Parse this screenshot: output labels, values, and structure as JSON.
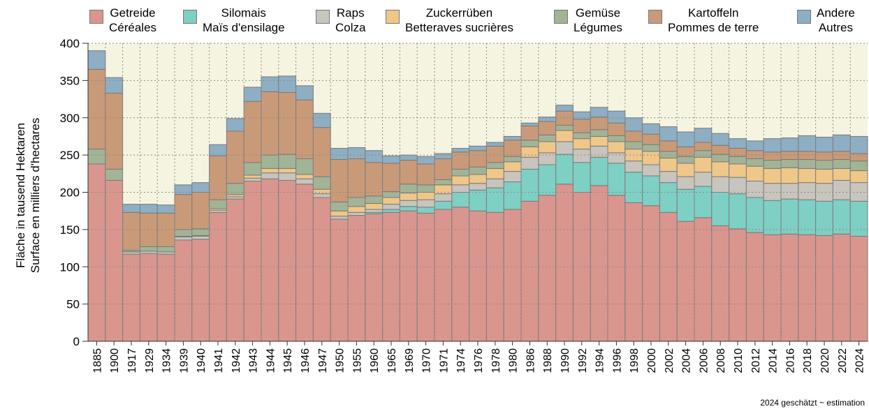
{
  "chart_data": {
    "type": "stacked_bar",
    "ylabel": [
      "Fläche in tausend Hektaren",
      "Surface en milliers d'hectares"
    ],
    "note": "2024 geschätzt  ~  estimation",
    "categories": [
      "1885",
      "1900",
      "1917",
      "1929",
      "1934",
      "1939",
      "1940",
      "1941",
      "1942",
      "1943",
      "1944",
      "1945",
      "1946",
      "1947",
      "1950",
      "1955",
      "1960",
      "1965",
      "1969",
      "1970",
      "1971",
      "1974",
      "1976",
      "1978",
      "1980",
      "1986",
      "1988",
      "1990",
      "1992",
      "1994",
      "1996",
      "1998",
      "2000",
      "2002",
      "2004",
      "2006",
      "2008",
      "2010",
      "2012",
      "2014",
      "2016",
      "2018",
      "2020",
      "2022",
      "2024"
    ],
    "ylim": [
      0,
      400
    ],
    "yticks": [
      0,
      50,
      100,
      150,
      200,
      250,
      300,
      350,
      400
    ],
    "grid": true,
    "background": "#f4f4e0",
    "series": [
      {
        "name": "Getreide\nCéréales",
        "color": "#d9968e",
        "values": [
          238,
          216,
          117,
          118,
          117,
          136,
          137,
          173,
          191,
          215,
          218,
          216,
          211,
          193,
          164,
          169,
          171,
          173,
          175,
          172,
          177,
          180,
          175,
          173,
          177,
          188,
          196,
          211,
          200,
          209,
          196,
          186,
          182,
          173,
          161,
          166,
          155,
          151,
          146,
          143,
          144,
          143,
          142,
          144,
          141
        ]
      },
      {
        "name": "Silomais\nMaïs d'ensilage",
        "color": "#7ecfc4",
        "values": [
          0,
          0,
          0,
          0,
          0,
          0,
          0,
          0,
          0,
          0,
          0,
          0,
          0,
          0,
          0,
          0,
          2,
          4,
          6,
          8,
          11,
          20,
          28,
          33,
          37,
          43,
          41,
          40,
          40,
          38,
          43,
          41,
          40,
          40,
          43,
          42,
          45,
          47,
          47,
          46,
          47,
          47,
          46,
          46,
          47
        ]
      },
      {
        "name": "Raps\nColza",
        "color": "#c8c5be",
        "values": [
          0,
          0,
          3,
          3,
          3,
          4,
          4,
          3,
          3,
          4,
          8,
          10,
          7,
          5,
          4,
          4,
          4,
          7,
          8,
          10,
          10,
          10,
          9,
          12,
          14,
          16,
          16,
          17,
          18,
          15,
          14,
          15,
          15,
          15,
          17,
          19,
          21,
          22,
          22,
          23,
          21,
          23,
          24,
          26,
          25
        ]
      },
      {
        "name": "Zuckerrüben\nBetteraves sucrières",
        "color": "#efc789",
        "values": [
          0,
          0,
          0,
          0,
          0,
          1,
          1,
          2,
          3,
          4,
          6,
          6,
          6,
          6,
          7,
          8,
          8,
          9,
          10,
          10,
          12,
          12,
          12,
          14,
          13,
          14,
          15,
          15,
          14,
          13,
          15,
          16,
          18,
          18,
          18,
          20,
          20,
          18,
          20,
          20,
          21,
          19,
          19,
          16,
          16
        ]
      },
      {
        "name": "Gemüse\nLégumes",
        "color": "#a2b496",
        "values": [
          20,
          15,
          2,
          6,
          7,
          9,
          9,
          12,
          15,
          17,
          18,
          19,
          21,
          17,
          12,
          12,
          10,
          8,
          12,
          10,
          7,
          9,
          10,
          8,
          7,
          9,
          9,
          7,
          8,
          9,
          8,
          10,
          9,
          9,
          9,
          9,
          10,
          10,
          10,
          11,
          11,
          12,
          12,
          12,
          13
        ]
      },
      {
        "name": "Kartoffeln\nPommes de terre",
        "color": "#c99a78",
        "values": [
          107,
          102,
          51,
          45,
          45,
          47,
          49,
          59,
          70,
          82,
          85,
          83,
          79,
          66,
          57,
          52,
          45,
          38,
          32,
          28,
          28,
          23,
          22,
          22,
          22,
          19,
          18,
          19,
          18,
          17,
          17,
          14,
          14,
          14,
          13,
          11,
          12,
          11,
          11,
          11,
          11,
          11,
          11,
          11,
          10
        ]
      },
      {
        "name": "Andere\nAutres",
        "color": "#8eaec3",
        "values": [
          25,
          21,
          11,
          12,
          11,
          13,
          13,
          15,
          17,
          19,
          20,
          22,
          19,
          19,
          15,
          15,
          16,
          10,
          7,
          10,
          7,
          5,
          6,
          5,
          5,
          4,
          6,
          8,
          10,
          13,
          16,
          18,
          14,
          19,
          20,
          19,
          16,
          13,
          13,
          18,
          18,
          21,
          20,
          22,
          23
        ]
      }
    ]
  }
}
